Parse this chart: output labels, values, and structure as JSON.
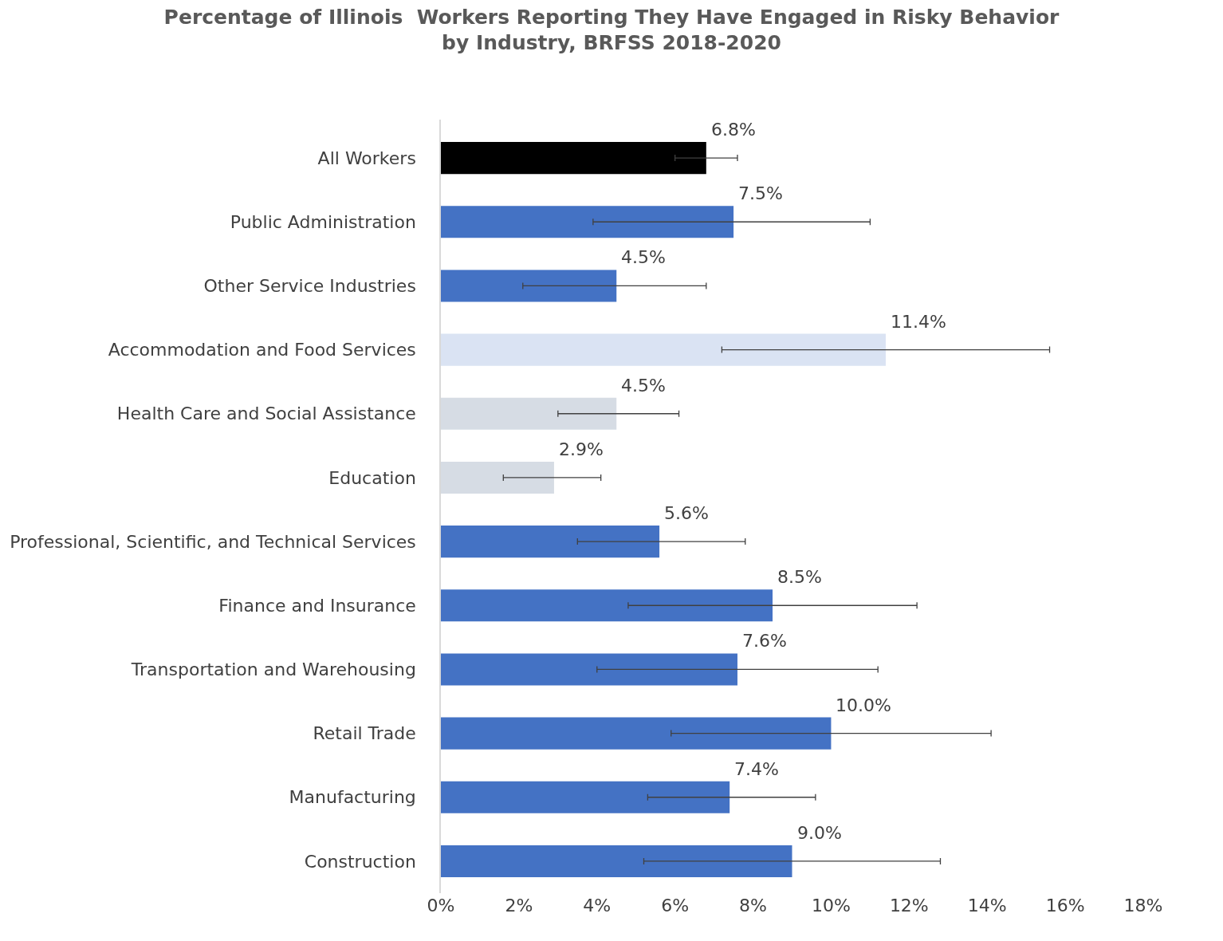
{
  "chart_data": {
    "type": "bar",
    "orientation": "horizontal",
    "title": "Percentage of Illinois  Workers Reporting They Have Engaged in Risky Behavior\nby Industry, BRFSS 2018-2020",
    "categories": [
      "All Workers",
      "Public Administration",
      "Other Service Industries",
      "Accommodation and Food Services",
      "Health Care and Social Assistance",
      "Education",
      "Professional, Scientific, and Technical Services",
      "Finance and Insurance",
      "Transportation and Warehousing",
      "Retail Trade",
      "Manufacturing",
      "Construction"
    ],
    "values": [
      6.8,
      7.5,
      4.5,
      11.4,
      4.5,
      2.9,
      5.6,
      8.5,
      7.6,
      10.0,
      7.4,
      9.0
    ],
    "value_labels": [
      "6.8%",
      "7.5%",
      "4.5%",
      "11.4%",
      "4.5%",
      "2.9%",
      "5.6%",
      "8.5%",
      "7.6%",
      "10.0%",
      "7.4%",
      "9.0%"
    ],
    "errors": [
      [
        6.0,
        7.6
      ],
      [
        3.9,
        11.0
      ],
      [
        2.1,
        6.8
      ],
      [
        7.2,
        15.6
      ],
      [
        3.0,
        6.1
      ],
      [
        1.6,
        4.1
      ],
      [
        3.5,
        7.8
      ],
      [
        4.8,
        12.2
      ],
      [
        4.0,
        11.2
      ],
      [
        5.9,
        14.1
      ],
      [
        5.3,
        9.6
      ],
      [
        5.2,
        12.8
      ]
    ],
    "colors": [
      "#000000",
      "#4472c4",
      "#4472c4",
      "#dae3f3",
      "#d6dce4",
      "#d6dce4",
      "#4472c4",
      "#4472c4",
      "#4472c4",
      "#4472c4",
      "#4472c4",
      "#4472c4"
    ],
    "xlim": [
      0,
      18
    ],
    "xticks": [
      {
        "value": 0,
        "label": "0%"
      },
      {
        "value": 2,
        "label": "2%"
      },
      {
        "value": 4,
        "label": "4%"
      },
      {
        "value": 6,
        "label": "6%"
      },
      {
        "value": 8,
        "label": "8%"
      },
      {
        "value": 10,
        "label": "10%"
      },
      {
        "value": 12,
        "label": "12%"
      },
      {
        "value": 14,
        "label": "14%"
      },
      {
        "value": 16,
        "label": "16%"
      },
      {
        "value": 18,
        "label": "18%"
      }
    ],
    "legend": false
  }
}
